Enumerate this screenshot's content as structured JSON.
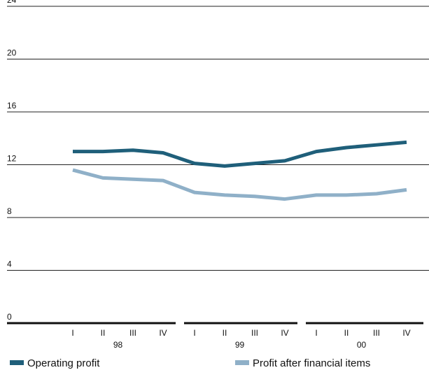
{
  "chart_data": {
    "type": "line",
    "categories": [
      "I",
      "II",
      "III",
      "IV",
      "I",
      "II",
      "III",
      "IV",
      "I",
      "II",
      "III",
      "IV"
    ],
    "groups": [
      "98",
      "99",
      "00"
    ],
    "series": [
      {
        "name": "Operating profit",
        "color": "#1f5f7a",
        "values": [
          13.0,
          13.0,
          13.1,
          12.9,
          12.1,
          11.9,
          12.1,
          12.3,
          13.0,
          13.3,
          13.5,
          13.7
        ]
      },
      {
        "name": "Profit after financial items",
        "color": "#8fb0c8",
        "values": [
          11.6,
          11.0,
          10.9,
          10.8,
          9.9,
          9.7,
          9.6,
          9.4,
          9.7,
          9.7,
          9.8,
          10.1
        ]
      }
    ],
    "ylim": [
      0,
      24
    ],
    "yticks": [
      0,
      4,
      8,
      12,
      16,
      20,
      24
    ],
    "grid": true
  }
}
